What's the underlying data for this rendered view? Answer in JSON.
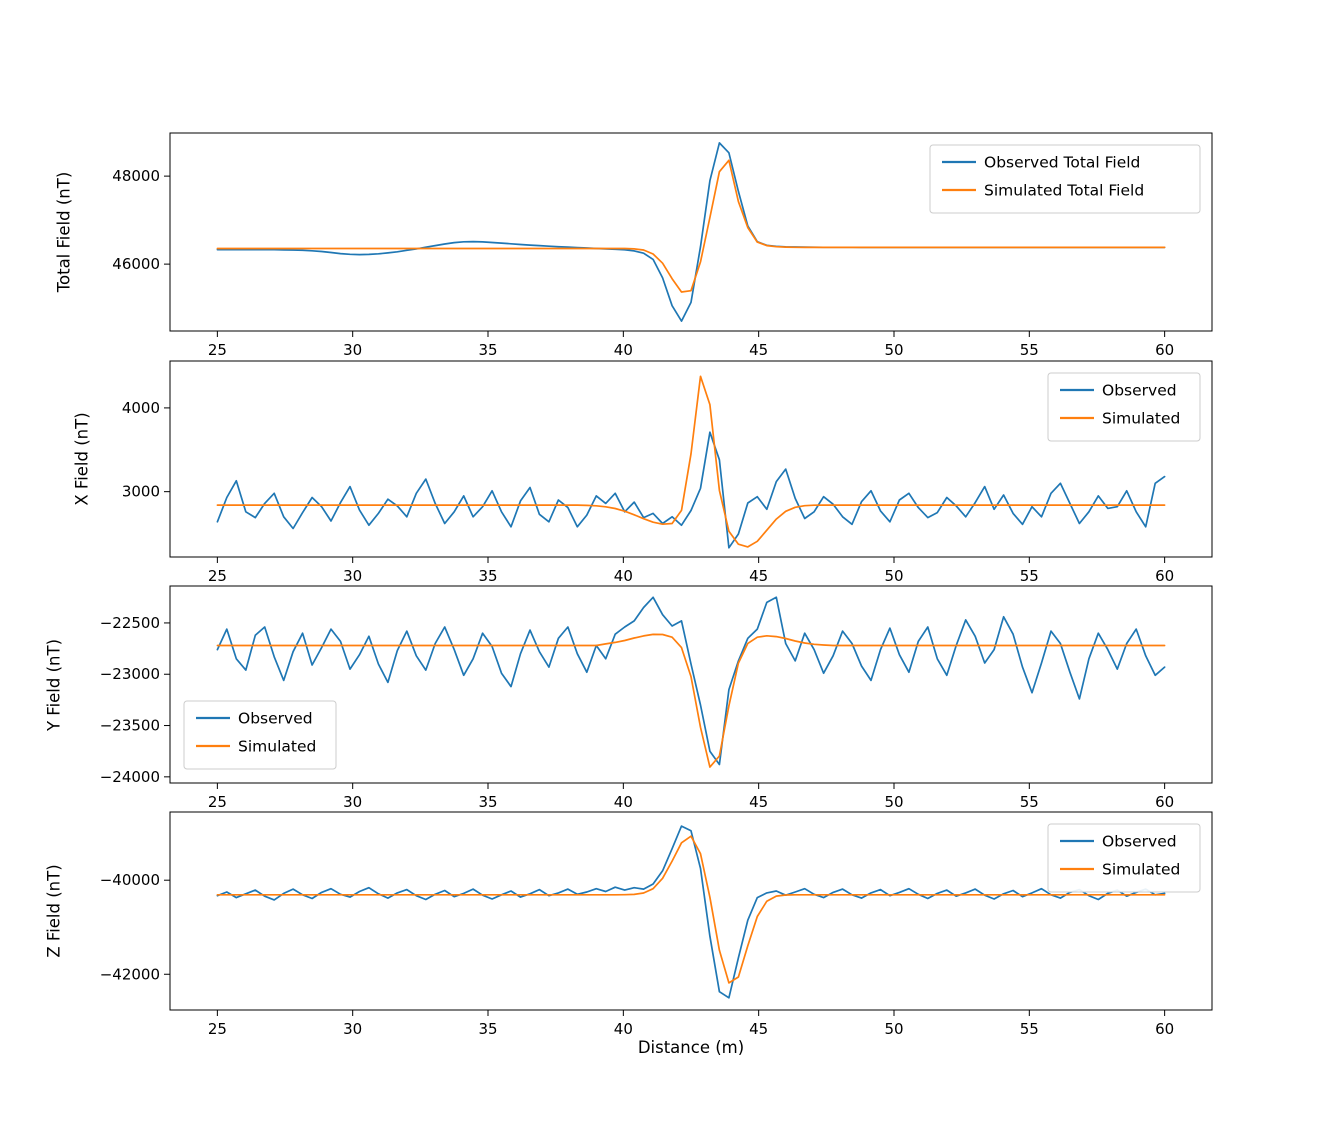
{
  "figure": {
    "xlabel": "Distance (m)",
    "xlim": [
      23.25,
      61.75
    ],
    "x_ticks": [
      25,
      30,
      35,
      40,
      45,
      50,
      55,
      60
    ],
    "background": "#ffffff",
    "colors": {
      "observed": "#1f77b4",
      "simulated": "#ff7f0e"
    }
  },
  "chart_data": [
    {
      "type": "line",
      "ylabel": "Total Field (nT)",
      "ylim": [
        44480,
        48980
      ],
      "y_ticks": [
        46000,
        48000
      ],
      "legend": {
        "position": "upper right",
        "entries": [
          "Observed Total Field",
          "Simulated Total Field"
        ]
      },
      "x_start": 25,
      "x_step": 0.35,
      "series": [
        {
          "name": "Observed Total Field",
          "color": "#1f77b4",
          "values": [
            46330,
            46330,
            46330,
            46330,
            46330,
            46329,
            46327,
            46324,
            46320,
            46314,
            46303,
            46286,
            46263,
            46240,
            46223,
            46216,
            46221,
            46235,
            46255,
            46281,
            46313,
            46347,
            46384,
            46421,
            46457,
            46489,
            46507,
            46512,
            46505,
            46492,
            46477,
            46461,
            46447,
            46433,
            46420,
            46408,
            46396,
            46386,
            46376,
            46366,
            46356,
            46346,
            46336,
            46325,
            46300,
            46248,
            46108,
            45686,
            45054,
            44704,
            45130,
            46395,
            47897,
            48755,
            48529,
            47653,
            46867,
            46510,
            46428,
            46405,
            46394,
            46389,
            46386,
            46384,
            46383,
            46382,
            46382,
            46382,
            46381,
            46381,
            46381,
            46381,
            46381,
            46381,
            46381,
            46381,
            46381,
            46381,
            46381,
            46381,
            46381,
            46381,
            46381,
            46381,
            46381,
            46381,
            46381,
            46381,
            46381,
            46381,
            46381,
            46381,
            46381,
            46381,
            46381,
            46381,
            46381,
            46381,
            46381,
            46381,
            46381
          ]
        },
        {
          "name": "Simulated Total Field",
          "color": "#ff7f0e",
          "values": [
            46355,
            46355,
            46355,
            46355,
            46355,
            46355,
            46355,
            46355,
            46355,
            46355,
            46355,
            46355,
            46355,
            46355,
            46355,
            46355,
            46355,
            46355,
            46355,
            46355,
            46355,
            46355,
            46355,
            46355,
            46355,
            46355,
            46355,
            46355,
            46355,
            46355,
            46355,
            46355,
            46355,
            46355,
            46355,
            46355,
            46355,
            46355,
            46355,
            46355,
            46355,
            46355,
            46355,
            46355,
            46347,
            46320,
            46230,
            46020,
            45669,
            45366,
            45395,
            46051,
            47060,
            48100,
            48360,
            47420,
            46830,
            46500,
            46420,
            46395,
            46386,
            46382,
            46381,
            46380,
            46380,
            46380,
            46380,
            46380,
            46380,
            46380,
            46380,
            46380,
            46380,
            46380,
            46380,
            46380,
            46380,
            46380,
            46380,
            46380,
            46380,
            46380,
            46380,
            46380,
            46380,
            46380,
            46380,
            46380,
            46380,
            46380,
            46380,
            46380,
            46380,
            46380,
            46380,
            46380,
            46380,
            46380,
            46380,
            46380,
            46380
          ]
        }
      ]
    },
    {
      "type": "line",
      "ylabel": "X Field (nT)",
      "ylim": [
        2220,
        4560
      ],
      "y_ticks": [
        3000,
        4000
      ],
      "legend": {
        "position": "upper right",
        "entries": [
          "Observed",
          "Simulated"
        ]
      },
      "x_start": 25,
      "x_step": 0.35,
      "series": [
        {
          "name": "Observed",
          "color": "#1f77b4",
          "values": [
            2640,
            2930,
            3130,
            2760,
            2690,
            2860,
            2980,
            2700,
            2560,
            2750,
            2930,
            2820,
            2650,
            2870,
            3060,
            2780,
            2600,
            2740,
            2910,
            2830,
            2700,
            2980,
            3150,
            2860,
            2620,
            2760,
            2950,
            2700,
            2820,
            3010,
            2760,
            2580,
            2890,
            3050,
            2730,
            2640,
            2900,
            2810,
            2580,
            2720,
            2950,
            2860,
            2980,
            2760,
            2875,
            2690,
            2740,
            2620,
            2700,
            2600,
            2775,
            3040,
            3710,
            3380,
            2330,
            2495,
            2865,
            2940,
            2790,
            3120,
            3270,
            2920,
            2680,
            2760,
            2940,
            2850,
            2700,
            2610,
            2880,
            3010,
            2770,
            2640,
            2900,
            2980,
            2810,
            2690,
            2750,
            2930,
            2830,
            2700,
            2870,
            3060,
            2790,
            2960,
            2740,
            2610,
            2820,
            2700,
            2980,
            3100,
            2860,
            2620,
            2760,
            2950,
            2800,
            2820,
            3010,
            2760,
            2580,
            3100,
            3180
          ]
        },
        {
          "name": "Simulated",
          "color": "#ff7f0e",
          "values": [
            2840,
            2840,
            2840,
            2840,
            2840,
            2840,
            2840,
            2840,
            2840,
            2840,
            2840,
            2840,
            2840,
            2840,
            2840,
            2840,
            2840,
            2840,
            2840,
            2840,
            2840,
            2840,
            2840,
            2840,
            2840,
            2840,
            2840,
            2840,
            2840,
            2840,
            2840,
            2840,
            2840,
            2840,
            2840,
            2840,
            2840,
            2840,
            2840,
            2836,
            2831,
            2819,
            2799,
            2767,
            2724,
            2677,
            2636,
            2612,
            2620,
            2776,
            3452,
            4377,
            4039,
            3015,
            2527,
            2373,
            2341,
            2408,
            2540,
            2673,
            2766,
            2813,
            2832,
            2838,
            2840,
            2840,
            2840,
            2840,
            2840,
            2840,
            2840,
            2840,
            2840,
            2840,
            2840,
            2840,
            2840,
            2840,
            2840,
            2840,
            2840,
            2840,
            2840,
            2840,
            2840,
            2840,
            2840,
            2840,
            2840,
            2840,
            2840,
            2840,
            2840,
            2840,
            2840,
            2840,
            2840,
            2840,
            2840,
            2840,
            2840
          ]
        }
      ]
    },
    {
      "type": "line",
      "ylabel": "Y Field (nT)",
      "ylim": [
        -24060,
        -22140
      ],
      "y_ticks": [
        -22500,
        -23000,
        -23500,
        -24000
      ],
      "legend": {
        "position": "lower left",
        "entries": [
          "Observed",
          "Simulated"
        ]
      },
      "x_start": 25,
      "x_step": 0.35,
      "series": [
        {
          "name": "Observed",
          "color": "#1f77b4",
          "values": [
            -22760,
            -22560,
            -22850,
            -22960,
            -22620,
            -22540,
            -22830,
            -23060,
            -22780,
            -22600,
            -22910,
            -22740,
            -22560,
            -22680,
            -22950,
            -22810,
            -22630,
            -22900,
            -23080,
            -22770,
            -22580,
            -22820,
            -22960,
            -22700,
            -22540,
            -22760,
            -23010,
            -22850,
            -22600,
            -22730,
            -22990,
            -23120,
            -22800,
            -22570,
            -22780,
            -22930,
            -22650,
            -22540,
            -22800,
            -22980,
            -22720,
            -22850,
            -22610,
            -22540,
            -22480,
            -22350,
            -22250,
            -22420,
            -22530,
            -22480,
            -22900,
            -23300,
            -23750,
            -23880,
            -23150,
            -22870,
            -22650,
            -22560,
            -22300,
            -22250,
            -22700,
            -22870,
            -22600,
            -22760,
            -22990,
            -22820,
            -22580,
            -22700,
            -22920,
            -23060,
            -22760,
            -22550,
            -22810,
            -22980,
            -22680,
            -22540,
            -22850,
            -23010,
            -22720,
            -22470,
            -22630,
            -22890,
            -22760,
            -22440,
            -22610,
            -22930,
            -23180,
            -22890,
            -22580,
            -22700,
            -22980,
            -23240,
            -22850,
            -22600,
            -22760,
            -22950,
            -22700,
            -22560,
            -22820,
            -23010,
            -22930
          ]
        },
        {
          "name": "Simulated",
          "color": "#ff7f0e",
          "values": [
            -22720,
            -22720,
            -22720,
            -22720,
            -22720,
            -22720,
            -22720,
            -22720,
            -22720,
            -22720,
            -22720,
            -22720,
            -22720,
            -22720,
            -22720,
            -22720,
            -22720,
            -22720,
            -22720,
            -22720,
            -22720,
            -22720,
            -22720,
            -22720,
            -22720,
            -22720,
            -22720,
            -22720,
            -22720,
            -22720,
            -22720,
            -22720,
            -22720,
            -22720,
            -22720,
            -22720,
            -22720,
            -22720,
            -22720,
            -22720,
            -22720,
            -22704,
            -22690,
            -22671,
            -22647,
            -22626,
            -22612,
            -22613,
            -22639,
            -22740,
            -23023,
            -23517,
            -23905,
            -23797,
            -23308,
            -22891,
            -22699,
            -22639,
            -22625,
            -22633,
            -22652,
            -22676,
            -22696,
            -22708,
            -22715,
            -22720,
            -22720,
            -22720,
            -22720,
            -22720,
            -22720,
            -22720,
            -22720,
            -22720,
            -22720,
            -22720,
            -22720,
            -22720,
            -22720,
            -22720,
            -22720,
            -22720,
            -22720,
            -22720,
            -22720,
            -22720,
            -22720,
            -22720,
            -22720,
            -22720,
            -22720,
            -22720,
            -22720,
            -22720,
            -22720,
            -22720,
            -22720,
            -22720,
            -22720,
            -22720,
            -22720
          ]
        }
      ]
    },
    {
      "type": "line",
      "ylabel": "Z Field (nT)",
      "ylim": [
        -42760,
        -38550
      ],
      "y_ticks": [
        -40000,
        -42000
      ],
      "legend": {
        "position": "upper right",
        "entries": [
          "Observed",
          "Simulated"
        ]
      },
      "x_start": 25,
      "x_step": 0.35,
      "series": [
        {
          "name": "Observed",
          "color": "#1f77b4",
          "values": [
            -40330,
            -40250,
            -40370,
            -40290,
            -40210,
            -40340,
            -40420,
            -40280,
            -40190,
            -40310,
            -40390,
            -40260,
            -40180,
            -40300,
            -40360,
            -40240,
            -40160,
            -40290,
            -40380,
            -40270,
            -40200,
            -40330,
            -40410,
            -40300,
            -40220,
            -40350,
            -40280,
            -40190,
            -40320,
            -40400,
            -40310,
            -40230,
            -40360,
            -40290,
            -40200,
            -40330,
            -40270,
            -40190,
            -40300,
            -40250,
            -40180,
            -40240,
            -40150,
            -40210,
            -40160,
            -40190,
            -40080,
            -39800,
            -39330,
            -38850,
            -38950,
            -39750,
            -41190,
            -42370,
            -42500,
            -41650,
            -40850,
            -40370,
            -40270,
            -40230,
            -40320,
            -40250,
            -40180,
            -40300,
            -40370,
            -40260,
            -40190,
            -40310,
            -40380,
            -40270,
            -40200,
            -40330,
            -40260,
            -40180,
            -40300,
            -40390,
            -40280,
            -40210,
            -40340,
            -40270,
            -40190,
            -40320,
            -40400,
            -40290,
            -40220,
            -40350,
            -40270,
            -40180,
            -40310,
            -40380,
            -40260,
            -40200,
            -40330,
            -40410,
            -40280,
            -40210,
            -40340,
            -40260,
            -40190,
            -40310,
            -40280
          ]
        },
        {
          "name": "Simulated",
          "color": "#ff7f0e",
          "values": [
            -40310,
            -40310,
            -40310,
            -40310,
            -40310,
            -40310,
            -40310,
            -40310,
            -40310,
            -40310,
            -40310,
            -40310,
            -40310,
            -40310,
            -40310,
            -40310,
            -40310,
            -40310,
            -40310,
            -40310,
            -40310,
            -40310,
            -40310,
            -40310,
            -40310,
            -40310,
            -40310,
            -40310,
            -40310,
            -40310,
            -40310,
            -40310,
            -40310,
            -40310,
            -40310,
            -40310,
            -40310,
            -40310,
            -40310,
            -40310,
            -40310,
            -40310,
            -40310,
            -40309,
            -40302,
            -40273,
            -40180,
            -39959,
            -39594,
            -39205,
            -39064,
            -39437,
            -40363,
            -41491,
            -42184,
            -42058,
            -41396,
            -40773,
            -40447,
            -40338,
            -40314,
            -40310,
            -40310,
            -40310,
            -40310,
            -40310,
            -40310,
            -40310,
            -40310,
            -40310,
            -40310,
            -40310,
            -40310,
            -40310,
            -40310,
            -40310,
            -40310,
            -40310,
            -40310,
            -40310,
            -40310,
            -40310,
            -40310,
            -40310,
            -40310,
            -40310,
            -40310,
            -40310,
            -40310,
            -40310,
            -40310,
            -40310,
            -40310,
            -40310,
            -40310,
            -40310,
            -40310,
            -40310,
            -40310,
            -40310,
            -40310
          ]
        }
      ]
    }
  ]
}
